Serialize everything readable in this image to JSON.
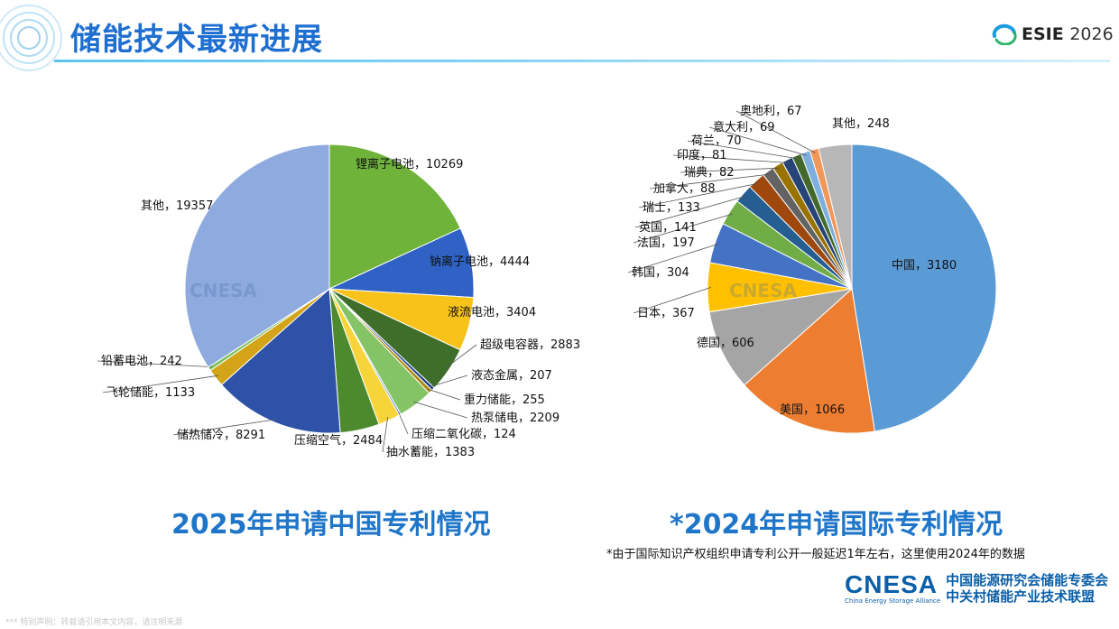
{
  "header": {
    "title": "储能技术最新进展",
    "logo_brand": "ESIE",
    "logo_year": "2026"
  },
  "watermark_text": "CNESA",
  "chart_data": [
    {
      "type": "pie",
      "title": "2025年申请中国专利情况",
      "slices": [
        {
          "label": "锂离子电池",
          "value": 10269,
          "display": "10269",
          "color": "#6fb33b"
        },
        {
          "label": "钠离子电池",
          "value": 4444,
          "display": "4444",
          "color": "#2f62c4"
        },
        {
          "label": "液流电池",
          "value": 3404,
          "display": "3404",
          "color": "#f7c21a"
        },
        {
          "label": "超级电容器",
          "value": 2883,
          "display": "2883",
          "color": "#3f6e2a"
        },
        {
          "label": "液态金属",
          "value": 207,
          "display": "207",
          "color": "#1c3f8a"
        },
        {
          "label": "重力储能",
          "value": 255,
          "display": "255",
          "color": "#b18a16"
        },
        {
          "label": "热泵储电",
          "value": 2209,
          "display": "2209",
          "color": "#84c466"
        },
        {
          "label": "压缩二氧化碳",
          "value": 124,
          "display": "124",
          "color": "#6b8fd6"
        },
        {
          "label": "抽水蓄能",
          "value": 1383,
          "display": "1383",
          "color": "#f7d53a"
        },
        {
          "label": "压缩空气",
          "value": 2484,
          "display": "2484",
          "color": "#4d8a2e"
        },
        {
          "label": "储热储冷",
          "value": 8291,
          "display": "8291",
          "color": "#2d52a8"
        },
        {
          "label": "飞轮储能",
          "value": 1133,
          "display": "1133",
          "color": "#d4a418"
        },
        {
          "label": "铅蓄电池",
          "value": 242,
          "display": "242",
          "color": "#7cc160"
        },
        {
          "label": "其他",
          "value": 19357,
          "display": "19357",
          "color": "#8eaadf"
        }
      ]
    },
    {
      "type": "pie",
      "title": "*2024年申请国际专利情况",
      "footnote": "*由于国际知识产权组织申请专利公开一般延迟1年左右，这里使用2024年的数据",
      "slices": [
        {
          "label": "中国",
          "value": 3180,
          "display": "3180",
          "color": "#5b9bd5"
        },
        {
          "label": "美国",
          "value": 1066,
          "display": "1066",
          "color": "#ed7d31"
        },
        {
          "label": "德国",
          "value": 606,
          "display": "606",
          "color": "#a5a5a5"
        },
        {
          "label": "日本",
          "value": 367,
          "display": "367",
          "color": "#ffc000"
        },
        {
          "label": "韩国",
          "value": 304,
          "display": "304",
          "color": "#4472c4"
        },
        {
          "label": "法国",
          "value": 197,
          "display": "197",
          "color": "#70ad47"
        },
        {
          "label": "英国",
          "value": 141,
          "display": "141",
          "color": "#255e91"
        },
        {
          "label": "瑞士",
          "value": 133,
          "display": "133",
          "color": "#9e480e"
        },
        {
          "label": "加拿大",
          "value": 88,
          "display": "88",
          "color": "#636363"
        },
        {
          "label": "瑞典",
          "value": 82,
          "display": "82",
          "color": "#997300"
        },
        {
          "label": "印度",
          "value": 81,
          "display": "81",
          "color": "#264478"
        },
        {
          "label": "荷兰",
          "value": 70,
          "display": "70",
          "color": "#43682b"
        },
        {
          "label": "意大利",
          "value": 69,
          "display": "69",
          "color": "#7cafdd"
        },
        {
          "label": "奥地利",
          "value": 67,
          "display": "67",
          "color": "#f1975a"
        },
        {
          "label": "其他",
          "value": 248,
          "display": "248",
          "color": "#b7b7b7"
        }
      ]
    }
  ],
  "footer": {
    "brand": "CNESA",
    "brand_sub": "China Energy Storage Alliance",
    "org_line1": "中国能源研究会储能专委会",
    "org_line2": "中关村储能产业技术联盟",
    "disclaimer": "*** 特别声明：转载请引用本文内容，请注明来源"
  }
}
